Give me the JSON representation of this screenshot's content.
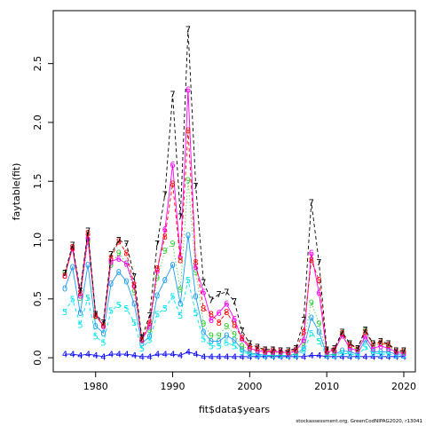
{
  "chart_data": {
    "type": "line",
    "xlabel": "fit$data$years",
    "ylabel": "faytable(fit)",
    "xlim": [
      1974.5,
      2021.5
    ],
    "ylim": [
      -0.12,
      2.95
    ],
    "x_ticks": [
      1980,
      1990,
      2000,
      2010,
      2020
    ],
    "y_ticks": [
      0.0,
      0.5,
      1.0,
      1.5,
      2.0,
      2.5
    ],
    "y_tick_labels": [
      "0.0",
      "0.5",
      "1.0",
      "1.5",
      "2.0",
      "2.5"
    ],
    "x": [
      1976,
      1977,
      1978,
      1979,
      1980,
      1981,
      1982,
      1983,
      1984,
      1985,
      1986,
      1987,
      1988,
      1989,
      1990,
      1991,
      1992,
      1993,
      1994,
      1995,
      1996,
      1997,
      1998,
      1999,
      2000,
      2001,
      2002,
      2003,
      2004,
      2005,
      2006,
      2007,
      2008,
      2009,
      2010,
      2011,
      2012,
      2013,
      2014,
      2015,
      2016,
      2017,
      2018,
      2019,
      2020
    ],
    "grid": false,
    "legend": "none",
    "credit": "stockassessment.org, GreenCodNIPAG2020, r13041",
    "series": [
      {
        "label": "0",
        "color": "#1f9ded",
        "style": "solid",
        "values": [
          0.59,
          0.77,
          0.38,
          0.79,
          0.27,
          0.21,
          0.63,
          0.73,
          0.65,
          0.46,
          0.12,
          0.18,
          0.53,
          0.66,
          0.79,
          0.46,
          1.04,
          0.52,
          0.22,
          0.14,
          0.14,
          0.19,
          0.15,
          0.07,
          0.04,
          0.03,
          0.02,
          0.02,
          0.02,
          0.02,
          0.03,
          0.08,
          0.34,
          0.22,
          0.02,
          0.03,
          0.06,
          0.05,
          0.03,
          0.15,
          0.05,
          0.05,
          0.05,
          0.03,
          0.03
        ]
      },
      {
        "label": "4",
        "color": "#0000ff",
        "style": "solid",
        "values": [
          0.03,
          0.03,
          0.02,
          0.03,
          0.02,
          0.01,
          0.03,
          0.03,
          0.03,
          0.02,
          0.01,
          0.01,
          0.03,
          0.03,
          0.03,
          0.02,
          0.05,
          0.03,
          0.01,
          0.01,
          0.01,
          0.01,
          0.01,
          0.01,
          0.01,
          0.01,
          0.01,
          0.01,
          0.01,
          0.01,
          0.01,
          0.01,
          0.02,
          0.02,
          0.01,
          0.01,
          0.01,
          0.01,
          0.01,
          0.01,
          0.01,
          0.01,
          0.01,
          0.01,
          0.01
        ]
      },
      {
        "label": "5",
        "color": "#00e5ee",
        "style": "dashed",
        "values": [
          0.39,
          0.5,
          0.28,
          0.51,
          0.18,
          0.13,
          0.4,
          0.45,
          0.42,
          0.3,
          0.08,
          0.15,
          0.37,
          0.42,
          0.52,
          0.36,
          0.66,
          0.38,
          0.16,
          0.1,
          0.1,
          0.13,
          0.1,
          0.05,
          0.03,
          0.02,
          0.02,
          0.02,
          0.02,
          0.02,
          0.02,
          0.06,
          0.21,
          0.14,
          0.02,
          0.02,
          0.04,
          0.03,
          0.02,
          0.09,
          0.04,
          0.03,
          0.03,
          0.02,
          0.02
        ]
      },
      {
        "label": "9",
        "color": "#33cc33",
        "style": "dotted",
        "values": [
          0.72,
          0.94,
          0.51,
          0.99,
          0.35,
          0.28,
          0.79,
          0.89,
          0.8,
          0.56,
          0.16,
          0.24,
          0.68,
          0.91,
          0.97,
          0.58,
          1.51,
          0.73,
          0.29,
          0.19,
          0.19,
          0.27,
          0.2,
          0.1,
          0.07,
          0.06,
          0.05,
          0.04,
          0.04,
          0.04,
          0.05,
          0.13,
          0.47,
          0.29,
          0.04,
          0.05,
          0.2,
          0.09,
          0.07,
          0.23,
          0.1,
          0.12,
          0.1,
          0.05,
          0.05
        ]
      },
      {
        "label": "6",
        "color": "#ff00ff",
        "style": "solid",
        "values": [
          0.7,
          0.93,
          0.53,
          1.02,
          0.36,
          0.27,
          0.82,
          0.84,
          0.8,
          0.61,
          0.15,
          0.27,
          0.74,
          1.09,
          1.64,
          0.86,
          2.28,
          0.77,
          0.56,
          0.32,
          0.38,
          0.46,
          0.33,
          0.16,
          0.08,
          0.06,
          0.05,
          0.05,
          0.05,
          0.04,
          0.06,
          0.15,
          0.89,
          0.55,
          0.05,
          0.06,
          0.19,
          0.08,
          0.06,
          0.18,
          0.08,
          0.1,
          0.08,
          0.05,
          0.04
        ]
      },
      {
        "label": "8",
        "color": "#ff0000",
        "style": "dashed",
        "values": [
          0.7,
          0.94,
          0.55,
          1.06,
          0.36,
          0.28,
          0.85,
          0.99,
          0.89,
          0.62,
          0.16,
          0.3,
          0.76,
          1.03,
          1.48,
          0.83,
          1.93,
          0.81,
          0.42,
          0.37,
          0.3,
          0.39,
          0.28,
          0.17,
          0.1,
          0.08,
          0.06,
          0.06,
          0.06,
          0.05,
          0.07,
          0.22,
          0.83,
          0.66,
          0.06,
          0.07,
          0.21,
          0.11,
          0.08,
          0.22,
          0.12,
          0.13,
          0.11,
          0.06,
          0.06
        ]
      },
      {
        "label": "7",
        "color": "#000000",
        "style": "dashed",
        "values": [
          0.72,
          0.96,
          0.57,
          1.08,
          0.37,
          0.3,
          0.88,
          1.0,
          0.97,
          0.69,
          0.17,
          0.36,
          0.97,
          1.39,
          2.24,
          1.2,
          2.79,
          1.46,
          0.64,
          0.49,
          0.54,
          0.56,
          0.48,
          0.23,
          0.12,
          0.09,
          0.07,
          0.07,
          0.06,
          0.06,
          0.08,
          0.32,
          1.32,
          0.81,
          0.07,
          0.08,
          0.22,
          0.12,
          0.08,
          0.24,
          0.12,
          0.14,
          0.12,
          0.06,
          0.06
        ]
      }
    ]
  }
}
